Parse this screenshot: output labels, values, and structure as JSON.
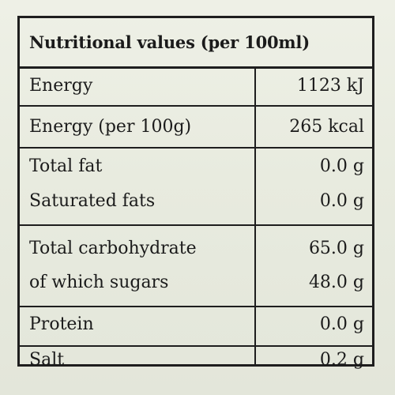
{
  "title": "Nutritional values (per 100ml)",
  "rows": [
    {
      "name": "Energy",
      "value": "1123 kJ"
    },
    {
      "name": "Energy (per 100g)",
      "value": "265 kcal"
    },
    {
      "name": "Total fat",
      "value": "0.0 g"
    },
    {
      "name": "Saturated fats",
      "value": "0.0 g"
    },
    {
      "name": "Total carbohydrate",
      "value": "65.0 g"
    },
    {
      "name": "of which sugars",
      "value": "48.0 g"
    },
    {
      "name": "Protein",
      "value": "0.0 g"
    },
    {
      "name": "Salt",
      "value": "0.2 g"
    }
  ]
}
